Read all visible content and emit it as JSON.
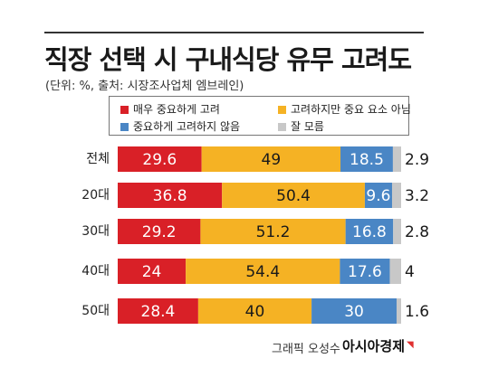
{
  "title": "직장 선택 시 구내식당 유무 고려도",
  "subtitle": "(단위: %, 출처: 시장조사업체 엠브레인)",
  "credit": "그래픽 오성수",
  "brand": "아시아경제",
  "colors": {
    "very_important": "#d92027",
    "not_very_important": "#f5b224",
    "not_important": "#4a86c5",
    "dont_know": "#c8c8c8"
  },
  "chart_data": {
    "type": "bar",
    "orientation": "horizontal",
    "stacked": true,
    "normalized": true,
    "legend_position": "top",
    "grid": false,
    "categories": [
      "전체",
      "20대",
      "30대",
      "40대",
      "50대"
    ],
    "series": [
      {
        "name": "매우 중요하게 고려",
        "color": "#d92027",
        "values": [
          29.6,
          36.8,
          29.2,
          24,
          28.4
        ]
      },
      {
        "name": "고려하지만 중요 요소 아님",
        "color": "#f5b224",
        "values": [
          49,
          50.4,
          51.2,
          54.4,
          40
        ]
      },
      {
        "name": "중요하게 고려하지 않음",
        "color": "#4a86c5",
        "values": [
          18.5,
          9.6,
          16.8,
          17.6,
          30
        ]
      },
      {
        "name": "잘 모름",
        "color": "#c8c8c8",
        "values": [
          2.9,
          3.2,
          2.8,
          4,
          1.6
        ]
      }
    ]
  }
}
